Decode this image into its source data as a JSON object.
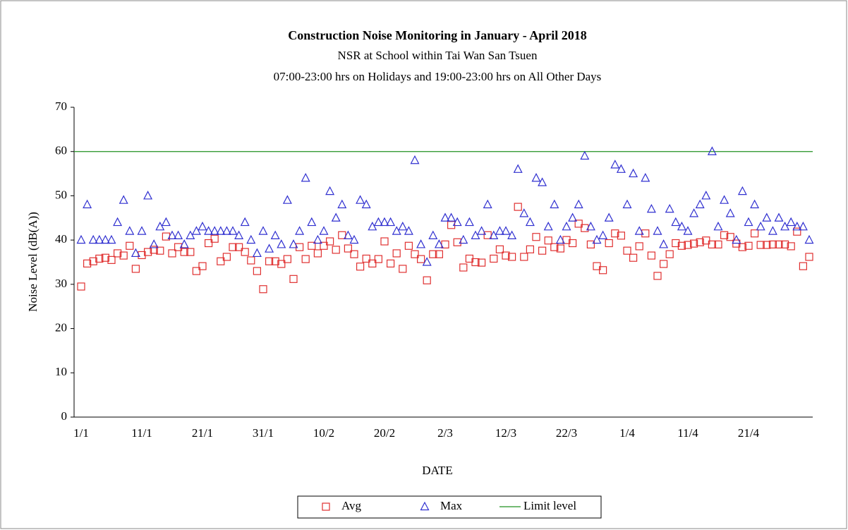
{
  "chart_data": {
    "type": "scatter",
    "title": "Construction  Noise Monitoring  in January  - April 2018",
    "subtitle": [
      "NSR at School within Tai Wan San Tsuen",
      "07:00-23:00 hrs on Holidays and 19:00-23:00 hrs on All Other Days"
    ],
    "x_label": "DATE",
    "y_label": "Noise Level  (dB(A))",
    "categories": [
      "1/1",
      null,
      null,
      null,
      null,
      null,
      null,
      null,
      null,
      null,
      "11/1",
      null,
      null,
      null,
      null,
      null,
      null,
      null,
      null,
      null,
      "21/1",
      null,
      null,
      null,
      null,
      null,
      null,
      null,
      null,
      null,
      "31/1",
      null,
      null,
      null,
      null,
      null,
      null,
      null,
      null,
      null,
      "10/2",
      null,
      null,
      null,
      null,
      null,
      null,
      null,
      null,
      null,
      "20/2",
      null,
      null,
      null,
      null,
      null,
      null,
      null,
      null,
      null,
      "2/3",
      null,
      null,
      null,
      null,
      null,
      null,
      null,
      null,
      null,
      "12/3",
      null,
      null,
      null,
      null,
      null,
      null,
      null,
      null,
      null,
      "22/3",
      null,
      null,
      null,
      null,
      null,
      null,
      null,
      null,
      null,
      "1/4",
      null,
      null,
      null,
      null,
      null,
      null,
      null,
      null,
      null,
      "11/4",
      null,
      null,
      null,
      null,
      null,
      null,
      null,
      null,
      null,
      "21/4",
      null,
      null,
      null,
      null,
      null,
      null,
      null,
      null,
      null,
      null
    ],
    "series": [
      {
        "name": "Avg",
        "color": "#e03030",
        "marker": "square",
        "values": [
          29.5,
          34.7,
          35.2,
          35.8,
          36,
          35.5,
          37,
          36.5,
          38.7,
          33.5,
          36.6,
          37.3,
          37.8,
          37.6,
          40.8,
          37,
          38.4,
          37.3,
          37.3,
          33,
          34.1,
          39.3,
          40.3,
          35.2,
          36.2,
          38.4,
          38.4,
          37.3,
          35.4,
          33,
          28.9,
          35.2,
          35.2,
          34.6,
          35.7,
          31.2,
          38.4,
          35.7,
          38.7,
          37,
          38.7,
          39.7,
          37.8,
          41.1,
          38.1,
          36.8,
          34,
          35.8,
          34.7,
          35.7,
          39.7,
          34.7,
          37,
          33.5,
          38.7,
          36.8,
          35.7,
          30.9,
          36.8,
          36.8,
          39,
          43.4,
          39.5,
          33.8,
          35.8,
          35,
          34.9,
          41.1,
          35.8,
          37.9,
          36.5,
          36.2,
          47.5,
          36.2,
          37.9,
          40.7,
          37.6,
          39.9,
          38.4,
          38.1,
          40,
          39.3,
          43.7,
          42.7,
          39,
          34.1,
          33.2,
          39.3,
          41.5,
          41,
          37.6,
          36,
          38.6,
          41.5,
          36.5,
          31.9,
          34.6,
          36.8,
          39.3,
          38.7,
          38.9,
          39.2,
          39.5,
          39.9,
          39,
          39,
          41.1,
          40.7,
          39.2,
          38.4,
          38.7,
          41.5,
          38.9,
          38.9,
          39,
          39,
          39,
          38.6,
          41.9,
          34.1,
          36.2
        ]
      },
      {
        "name": "Max",
        "color": "#3030d0",
        "marker": "triangle",
        "values": [
          40,
          48,
          40,
          40,
          40,
          40,
          44,
          49,
          42,
          37,
          42,
          50,
          39,
          43,
          44,
          41,
          41,
          39,
          41,
          42,
          43,
          42,
          42,
          42,
          42,
          42,
          41,
          44,
          40,
          37,
          42,
          38,
          41,
          39,
          49,
          39,
          42,
          54,
          44,
          40,
          42,
          51,
          45,
          48,
          41,
          40,
          49,
          48,
          43,
          44,
          44,
          44,
          42,
          43,
          42,
          58,
          39,
          35,
          41,
          39,
          45,
          45,
          44,
          40,
          44,
          41,
          42,
          48,
          41,
          42,
          42,
          41,
          56,
          46,
          44,
          54,
          53,
          43,
          48,
          40,
          43,
          45,
          48,
          59,
          43,
          40,
          41,
          45,
          57,
          56,
          48,
          55,
          42,
          54,
          47,
          42,
          39,
          47,
          44,
          43,
          42,
          46,
          48,
          50,
          60,
          43,
          49,
          46,
          40,
          51,
          44,
          48,
          43,
          45,
          42,
          45,
          43,
          44,
          43,
          43,
          40
        ]
      }
    ],
    "limit": {
      "name": "Limit level",
      "value": 60,
      "color": "#209020"
    },
    "ylim": [
      0,
      70
    ],
    "yticks": [
      0,
      10,
      20,
      30,
      40,
      50,
      60,
      70
    ],
    "legend": "bottom"
  }
}
